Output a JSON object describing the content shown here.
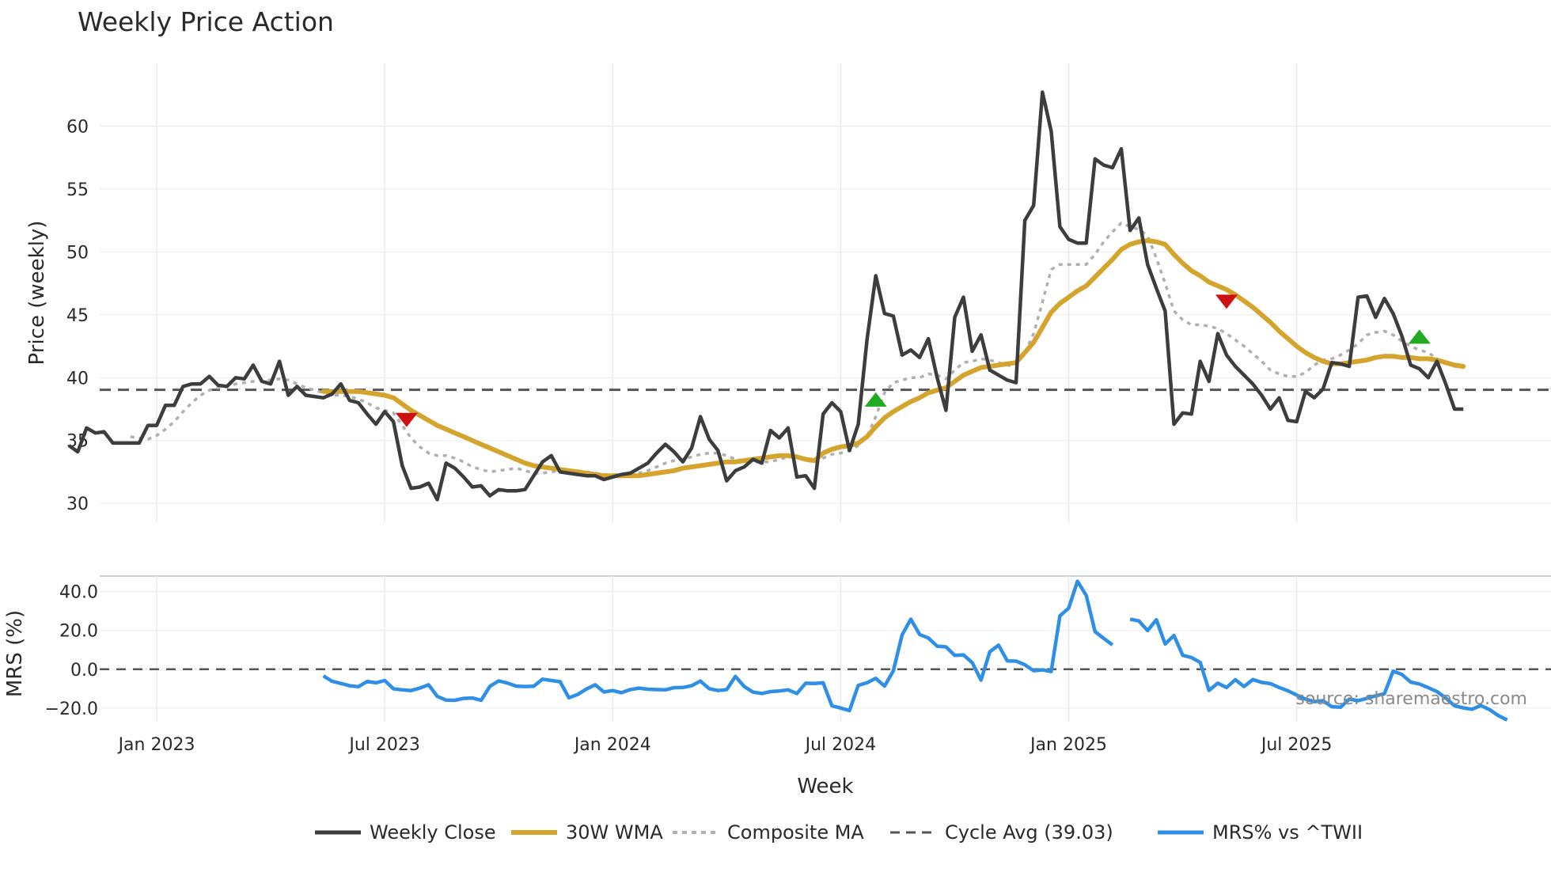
{
  "chart_data": {
    "type": "line",
    "title": "Weekly Price Action",
    "xlabel": "Week",
    "source": "source: sharemaestro.com",
    "colors": {
      "close": "#3d3d3d",
      "wma": "#d4a42c",
      "composite": "#b0b0b0",
      "cycle": "#555555",
      "mrs": "#2f8fe6",
      "bull": "#22aa22",
      "bear": "#cc1111",
      "grid": "#e8ecf2"
    },
    "x_ticks": [
      {
        "label": "Jan 2023",
        "week": 10
      },
      {
        "label": "Jul 2023",
        "week": 36
      },
      {
        "label": "Jan 2024",
        "week": 62
      },
      {
        "label": "Jul 2024",
        "week": 88
      },
      {
        "label": "Jan 2025",
        "week": 114
      },
      {
        "label": "Jul 2025",
        "week": 140
      }
    ],
    "x_range": [
      3.5,
      169
    ],
    "legend": {
      "position": "bottom",
      "items": [
        {
          "key": "close",
          "label": "Weekly Close"
        },
        {
          "key": "wma",
          "label": "30W WMA"
        },
        {
          "key": "composite",
          "label": "Composite MA"
        },
        {
          "key": "cycle",
          "label": "Cycle Avg (39.03)"
        },
        {
          "key": "mrs",
          "label": "MRS% vs ^TWII"
        }
      ]
    },
    "price_panel": {
      "ylabel": "Price (weekly)",
      "ylim": [
        28.5,
        65
      ],
      "y_ticks": [
        30,
        35,
        40,
        45,
        50,
        55,
        60
      ],
      "cycle_avg": 39.03,
      "weekly_close": [
        34.6,
        34.1,
        36.0,
        35.6,
        35.7,
        34.8,
        34.8,
        34.8,
        34.8,
        36.2,
        36.2,
        37.8,
        37.8,
        39.3,
        39.5,
        39.5,
        40.1,
        39.4,
        39.3,
        40.0,
        39.9,
        41.0,
        39.7,
        39.5,
        41.3,
        38.6,
        39.3,
        38.6,
        38.5,
        38.4,
        38.7,
        39.5,
        38.2,
        38.0,
        37.1,
        36.3,
        37.3,
        36.5,
        33.0,
        31.2,
        31.3,
        31.6,
        30.3,
        33.2,
        32.8,
        32.1,
        31.3,
        31.4,
        30.6,
        31.1,
        31.0,
        31.0,
        31.1,
        32.2,
        33.3,
        33.8,
        32.5,
        32.4,
        32.3,
        32.2,
        32.2,
        31.9,
        32.1,
        32.3,
        32.4,
        32.8,
        33.2,
        34.0,
        34.7,
        34.1,
        33.3,
        34.4,
        36.9,
        35.1,
        34.2,
        31.8,
        32.6,
        32.9,
        33.5,
        33.2,
        35.8,
        35.2,
        36.0,
        32.1,
        32.2,
        31.2,
        37.1,
        38.0,
        37.3,
        34.2,
        36.3,
        43.0,
        48.1,
        45.1,
        44.9,
        41.8,
        42.2,
        41.6,
        43.1,
        40.0,
        37.4,
        44.8,
        46.4,
        42.1,
        43.4,
        40.6,
        40.2,
        39.8,
        39.6,
        52.5,
        53.7,
        62.7,
        59.6,
        52.0,
        51.0,
        50.7,
        50.7,
        57.4,
        56.9,
        56.7,
        58.2,
        51.7,
        52.7,
        49.0,
        47.1,
        45.3,
        36.3,
        37.2,
        37.1,
        41.3,
        39.7,
        43.5,
        41.8,
        40.9,
        40.2,
        39.5,
        38.6,
        37.5,
        38.4,
        36.6,
        36.5,
        38.9,
        38.4,
        39.1,
        41.2,
        41.1,
        40.9,
        46.4,
        46.5,
        44.8,
        46.3,
        45.1,
        43.3,
        41.0,
        40.7,
        40.0,
        41.3,
        39.5,
        37.5,
        37.5
      ],
      "wma_30w": [
        null,
        null,
        null,
        null,
        null,
        null,
        null,
        null,
        null,
        null,
        null,
        null,
        null,
        null,
        null,
        null,
        null,
        null,
        null,
        null,
        null,
        null,
        null,
        null,
        null,
        null,
        null,
        null,
        null,
        38.9,
        38.9,
        38.9,
        38.9,
        38.9,
        38.8,
        38.7,
        38.6,
        38.4,
        37.9,
        37.4,
        37.0,
        36.6,
        36.2,
        35.9,
        35.6,
        35.3,
        35.0,
        34.7,
        34.4,
        34.1,
        33.8,
        33.5,
        33.2,
        33.0,
        32.9,
        32.8,
        32.7,
        32.6,
        32.5,
        32.4,
        32.3,
        32.2,
        32.2,
        32.2,
        32.2,
        32.2,
        32.3,
        32.4,
        32.5,
        32.6,
        32.8,
        32.9,
        33.0,
        33.1,
        33.2,
        33.3,
        33.3,
        33.4,
        33.5,
        33.6,
        33.7,
        33.8,
        33.8,
        33.7,
        33.5,
        33.4,
        34.0,
        34.3,
        34.5,
        34.6,
        34.8,
        35.3,
        36.1,
        36.8,
        37.3,
        37.7,
        38.1,
        38.4,
        38.8,
        39.0,
        39.2,
        39.7,
        40.2,
        40.5,
        40.8,
        40.9,
        41.0,
        41.1,
        41.2,
        42.0,
        42.8,
        44.0,
        45.2,
        45.9,
        46.4,
        46.9,
        47.3,
        48.0,
        48.7,
        49.4,
        50.2,
        50.6,
        50.8,
        50.9,
        50.8,
        50.6,
        49.8,
        49.1,
        48.5,
        48.1,
        47.6,
        47.3,
        47.0,
        46.6,
        46.1,
        45.6,
        45.0,
        44.4,
        43.7,
        43.1,
        42.5,
        42.0,
        41.6,
        41.3,
        41.1,
        41.1,
        41.2,
        41.3,
        41.4,
        41.6,
        41.7,
        41.7,
        41.6,
        41.6,
        41.5,
        41.5,
        41.4,
        41.2,
        41.0,
        40.9
      ],
      "composite_ma": [
        null,
        null,
        null,
        null,
        null,
        null,
        null,
        35.3,
        35.2,
        35.1,
        35.4,
        35.9,
        36.5,
        37.3,
        38.0,
        38.6,
        39.0,
        39.2,
        39.3,
        39.5,
        39.6,
        39.7,
        39.8,
        39.8,
        39.9,
        39.8,
        39.5,
        39.2,
        39.0,
        38.8,
        38.6,
        38.6,
        38.5,
        38.3,
        38.0,
        37.6,
        37.4,
        37.2,
        36.2,
        35.2,
        34.5,
        34.0,
        33.8,
        33.8,
        33.6,
        33.3,
        32.9,
        32.7,
        32.5,
        32.6,
        32.7,
        32.8,
        32.6,
        32.4,
        32.4,
        32.5,
        32.6,
        32.6,
        32.6,
        32.5,
        32.4,
        32.3,
        32.3,
        32.3,
        32.3,
        32.4,
        32.6,
        32.9,
        33.2,
        33.4,
        33.5,
        33.7,
        33.9,
        34.0,
        34.0,
        33.8,
        33.5,
        33.4,
        33.3,
        33.3,
        33.3,
        33.5,
        33.7,
        33.7,
        33.5,
        33.2,
        33.6,
        33.9,
        34.0,
        34.2,
        34.6,
        35.3,
        36.9,
        38.8,
        39.6,
        39.8,
        40.0,
        40.0,
        40.3,
        40.2,
        39.9,
        40.6,
        41.2,
        41.3,
        41.5,
        41.4,
        41.2,
        41.0,
        40.9,
        42.0,
        43.5,
        46.0,
        48.6,
        49.0,
        49.0,
        49.0,
        49.0,
        49.8,
        50.8,
        51.6,
        52.3,
        52.0,
        51.8,
        51.3,
        49.5,
        47.5,
        45.3,
        44.6,
        44.2,
        44.2,
        44.1,
        43.9,
        43.5,
        43.0,
        42.5,
        41.9,
        41.3,
        40.6,
        40.3,
        40.1,
        40.1,
        40.4,
        41.0,
        41.4,
        41.5,
        41.8,
        42.2,
        42.7,
        43.4,
        43.6,
        43.7,
        43.4,
        42.9,
        42.5,
        42.2,
        42.0,
        41.5,
        41.2,
        40.9,
        40.8
      ],
      "signals": [
        {
          "type": "bear",
          "week": 38.5,
          "price": 36.7
        },
        {
          "type": "bull",
          "week": 92,
          "price": 38.2
        },
        {
          "type": "bear",
          "week": 132,
          "price": 46.1
        },
        {
          "type": "bull",
          "week": 154,
          "price": 43.2
        }
      ]
    },
    "mrs_panel": {
      "ylabel": "MRS (%)",
      "ylim": [
        -27,
        48
      ],
      "y_ticks": [
        40.0,
        20.0,
        0.0,
        -20.0
      ],
      "y_tick_labels": [
        "40.0",
        "20.0",
        "0.0",
        "−20.0"
      ],
      "zero_line": 0,
      "mrs_pct": [
        null,
        null,
        null,
        null,
        null,
        null,
        null,
        null,
        null,
        null,
        null,
        null,
        null,
        null,
        null,
        null,
        null,
        null,
        null,
        null,
        null,
        null,
        null,
        null,
        null,
        null,
        null,
        null,
        null,
        -3.4,
        -6.2,
        -7.3,
        -8.5,
        -9.0,
        -6.3,
        -7.0,
        -5.8,
        -10.1,
        -10.6,
        -11.0,
        -9.7,
        -8.0,
        -14.0,
        -15.9,
        -16.0,
        -15.0,
        -14.8,
        -16.0,
        -8.8,
        -6.0,
        -7.1,
        -8.7,
        -8.9,
        -8.8,
        -5.1,
        -5.8,
        -6.4,
        -14.7,
        -13.0,
        -10.2,
        -8.0,
        -11.7,
        -11.0,
        -12.1,
        -10.5,
        -9.7,
        -10.3,
        -10.5,
        -10.6,
        -9.5,
        -9.4,
        -8.5,
        -6.1,
        -10.0,
        -11.0,
        -10.5,
        -3.7,
        -8.9,
        -11.8,
        -12.5,
        -11.5,
        -11.2,
        -10.6,
        -12.5,
        -7.2,
        -7.3,
        -7.0,
        -18.8,
        -20.0,
        -21.3,
        -8.3,
        -7.0,
        -4.7,
        -8.7,
        -0.8,
        17.7,
        25.8,
        17.9,
        16.1,
        11.9,
        11.5,
        7.1,
        7.4,
        3.4,
        -5.6,
        9.0,
        12.4,
        4.3,
        4.2,
        2.3,
        -0.8,
        -0.3,
        -1.2,
        27.5,
        31.5,
        45.3,
        38.0,
        19.4,
        15.9,
        12.5,
        null,
        25.8,
        24.9,
        19.9,
        25.5,
        13.0,
        17.4,
        7.2,
        6.0,
        3.5,
        -10.9,
        -7.2,
        -9.4,
        -5.4,
        -8.9,
        -5.3,
        -6.8,
        -7.4,
        -9.4,
        -11.1,
        -13.3,
        -15.4,
        -16.7,
        -16.2,
        -19.3,
        -19.6,
        -15.4,
        -16.2,
        -15.0,
        -13.7,
        -12.6,
        -1.0,
        -2.7,
        -6.6,
        -7.6,
        -9.5,
        -11.5,
        -14.8,
        -18.8,
        -19.9,
        -20.6,
        -18.7,
        -20.8,
        -23.9,
        -26.1
      ]
    }
  }
}
